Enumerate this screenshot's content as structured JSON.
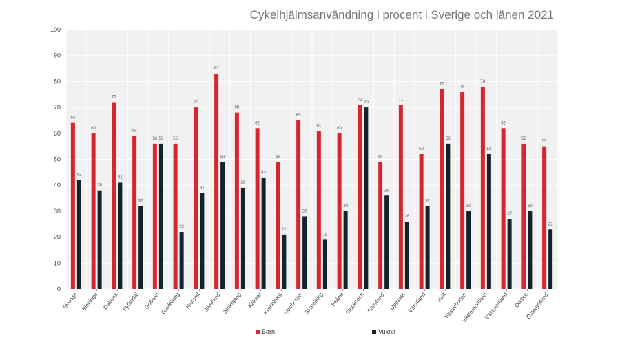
{
  "chart_data": {
    "type": "bar",
    "title": "Cykelhjälmsanvändning i procent i Sverige och länen 2021",
    "xlabel": "",
    "ylabel": "",
    "ylim": [
      0,
      100
    ],
    "yticks": [
      0,
      10,
      20,
      30,
      40,
      50,
      60,
      70,
      80,
      90,
      100
    ],
    "grid": true,
    "legend_position": "bottom",
    "categories": [
      "Sverige",
      "Blekinge",
      "Dalarna",
      "Fyrbodal",
      "Gotland",
      "Gävleborg",
      "Halland",
      "Jämtland",
      "Jönköping",
      "Kalmar",
      "Kronoberg",
      "Norrbotten",
      "Skaraborg",
      "Skåne",
      "Stockholm",
      "Sörmland",
      "Uppsala",
      "Värmland",
      "Väst",
      "Västerbotten",
      "Västernorrland",
      "Västmanland",
      "Örebro",
      "Östergötland"
    ],
    "series": [
      {
        "name": "Barn",
        "color": "#d7262e",
        "values": [
          64,
          60,
          72,
          59,
          56,
          56,
          70,
          83,
          68,
          62,
          49,
          65,
          61,
          60,
          71,
          49,
          71,
          52,
          77,
          76,
          78,
          62,
          56,
          55
        ]
      },
      {
        "name": "Vuxna",
        "color": "#13232e",
        "values": [
          42,
          38,
          41,
          32,
          56,
          22,
          37,
          49,
          39,
          43,
          21,
          28,
          19,
          30,
          70,
          36,
          26,
          32,
          56,
          30,
          52,
          27,
          30,
          23
        ]
      }
    ]
  }
}
